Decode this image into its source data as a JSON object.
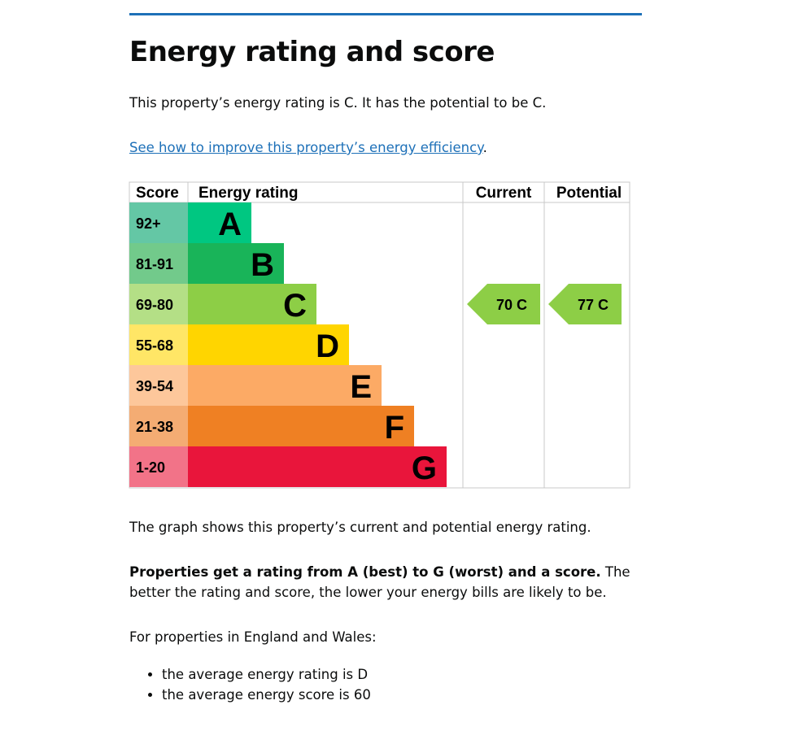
{
  "heading": "Energy rating and score",
  "intro": "This property’s energy rating is C. It has the potential to be C.",
  "link": {
    "text": "See how to improve this property’s energy efficiency",
    "after": "."
  },
  "chart_data": {
    "type": "table",
    "headers": {
      "score": "Score",
      "rating": "Energy rating",
      "current": "Current",
      "potential": "Potential"
    },
    "bands": [
      {
        "letter": "A",
        "range": "92+",
        "color": "#00c781",
        "light": "#64c7a5"
      },
      {
        "letter": "B",
        "range": "81-91",
        "color": "#19b459",
        "light": "#72ca8b"
      },
      {
        "letter": "C",
        "range": "69-80",
        "color": "#8dce46",
        "light": "#b4df86"
      },
      {
        "letter": "D",
        "range": "55-68",
        "color": "#ffd500",
        "light": "#ffe666"
      },
      {
        "letter": "E",
        "range": "39-54",
        "color": "#fcaa65",
        "light": "#fdc79b"
      },
      {
        "letter": "F",
        "range": "21-38",
        "color": "#ef8023",
        "light": "#f4ac73"
      },
      {
        "letter": "G",
        "range": "1-20",
        "color": "#e9153b",
        "light": "#f27388"
      }
    ],
    "current": {
      "score": 70,
      "letter": "C",
      "label": "70  C"
    },
    "potential": {
      "score": 77,
      "letter": "C",
      "label": "77  C"
    }
  },
  "graph_note": "The graph shows this property’s current and potential energy rating.",
  "rating_bold": "Properties get a rating from A (best) to G (worst) and a score.",
  "rating_rest": " The better the rating and score, the lower your energy bills are likely to be.",
  "region": "For properties in England and Wales:",
  "bullets": [
    "the average energy rating is D",
    "the average energy score is 60"
  ]
}
